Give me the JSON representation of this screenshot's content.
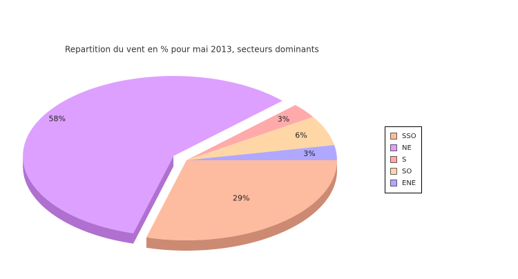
{
  "chart_data": {
    "type": "pie3d",
    "title": "Repartition du vent en % pour mai 2013, secteurs dominants",
    "categories": [
      "SSO",
      "NE",
      "S",
      "SO",
      "ENE"
    ],
    "values": [
      29,
      58,
      3,
      6,
      3
    ],
    "value_labels": [
      "29%",
      "58%",
      "3%",
      "6%",
      "3%"
    ],
    "colors": [
      "#fdbba0",
      "#dda0ff",
      "#ffaaaa",
      "#ffd6a6",
      "#b0a8ff"
    ],
    "side_colors": [
      "#cc8a72",
      "#b070d0",
      "#d08080",
      "#d0a878",
      "#8078d0"
    ],
    "exploded": "NE",
    "legend": "right"
  }
}
